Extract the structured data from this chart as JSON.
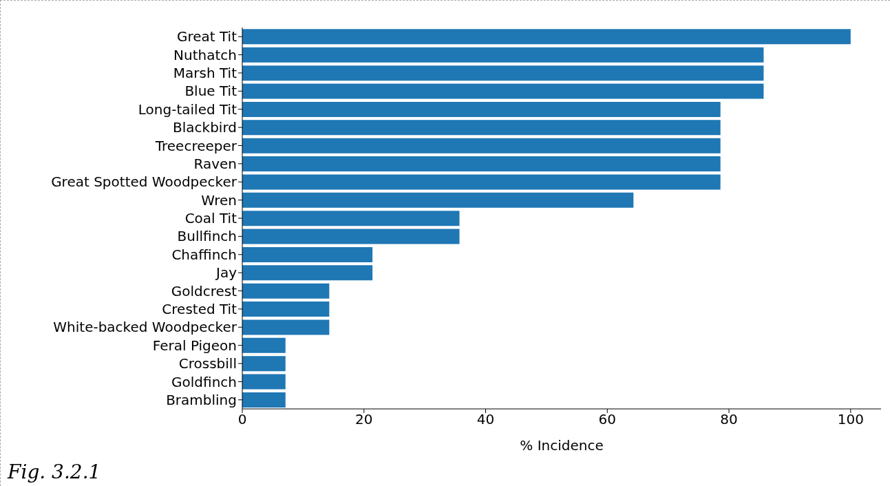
{
  "chart_data": {
    "type": "bar",
    "orientation": "horizontal",
    "xlabel": "% Incidence",
    "categories": [
      "Great Tit",
      "Nuthatch",
      "Marsh Tit",
      "Blue Tit",
      "Long-tailed Tit",
      "Blackbird",
      "Treecreeper",
      "Raven",
      "Great Spotted Woodpecker",
      "Wren",
      "Coal Tit",
      "Bullfinch",
      "Chaffinch",
      "Jay",
      "Goldcrest",
      "Crested Tit",
      "White-backed Woodpecker",
      "Feral Pigeon",
      "Crossbill",
      "Goldfinch",
      "Brambling"
    ],
    "values": [
      100,
      85.7,
      85.7,
      85.7,
      78.6,
      78.6,
      78.6,
      78.6,
      78.6,
      64.3,
      35.7,
      35.7,
      21.4,
      21.4,
      14.3,
      14.3,
      14.3,
      7.1,
      7.1,
      7.1,
      7.1
    ],
    "color": "#1f77b4",
    "xlim": [
      0,
      105
    ],
    "xticks": [
      0,
      20,
      40,
      60,
      80,
      100
    ],
    "grid": false,
    "legend": false,
    "annotations": [
      "Fig. 3.2.1"
    ]
  }
}
